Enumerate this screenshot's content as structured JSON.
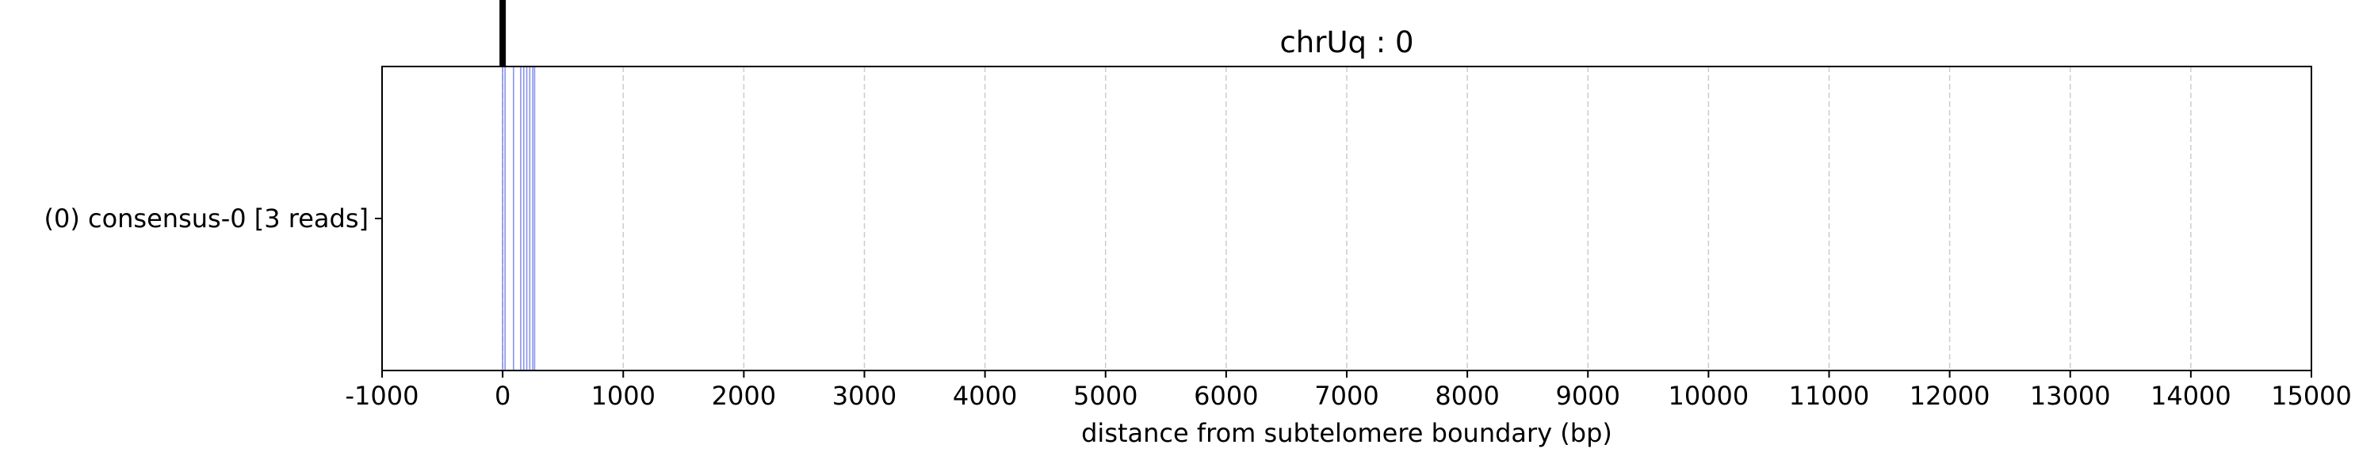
{
  "chart_data": {
    "type": "bar",
    "title": "chrUq : 0",
    "xlabel": "distance from subtelomere boundary (bp)",
    "ylabel": "",
    "xlim": [
      -1000,
      15000
    ],
    "x_ticks": [
      -1000,
      0,
      1000,
      2000,
      3000,
      4000,
      5000,
      6000,
      7000,
      8000,
      9000,
      10000,
      11000,
      12000,
      13000,
      14000,
      15000
    ],
    "x_tick_labels": [
      "-1000",
      "0",
      "1000",
      "2000",
      "3000",
      "4000",
      "5000",
      "6000",
      "7000",
      "8000",
      "9000",
      "10000",
      "11000",
      "12000",
      "13000",
      "14000",
      "15000"
    ],
    "vertical_grid": true,
    "categories": [
      "(0) consensus-0 [3 reads]"
    ],
    "boundary_x": 0,
    "read_marks_x": [
      0,
      20,
      90,
      150,
      175,
      200,
      225,
      250,
      265
    ],
    "colors": {
      "read_mark": "#6a78e6",
      "boundary": "#000000",
      "grid": "#cccccc"
    }
  }
}
